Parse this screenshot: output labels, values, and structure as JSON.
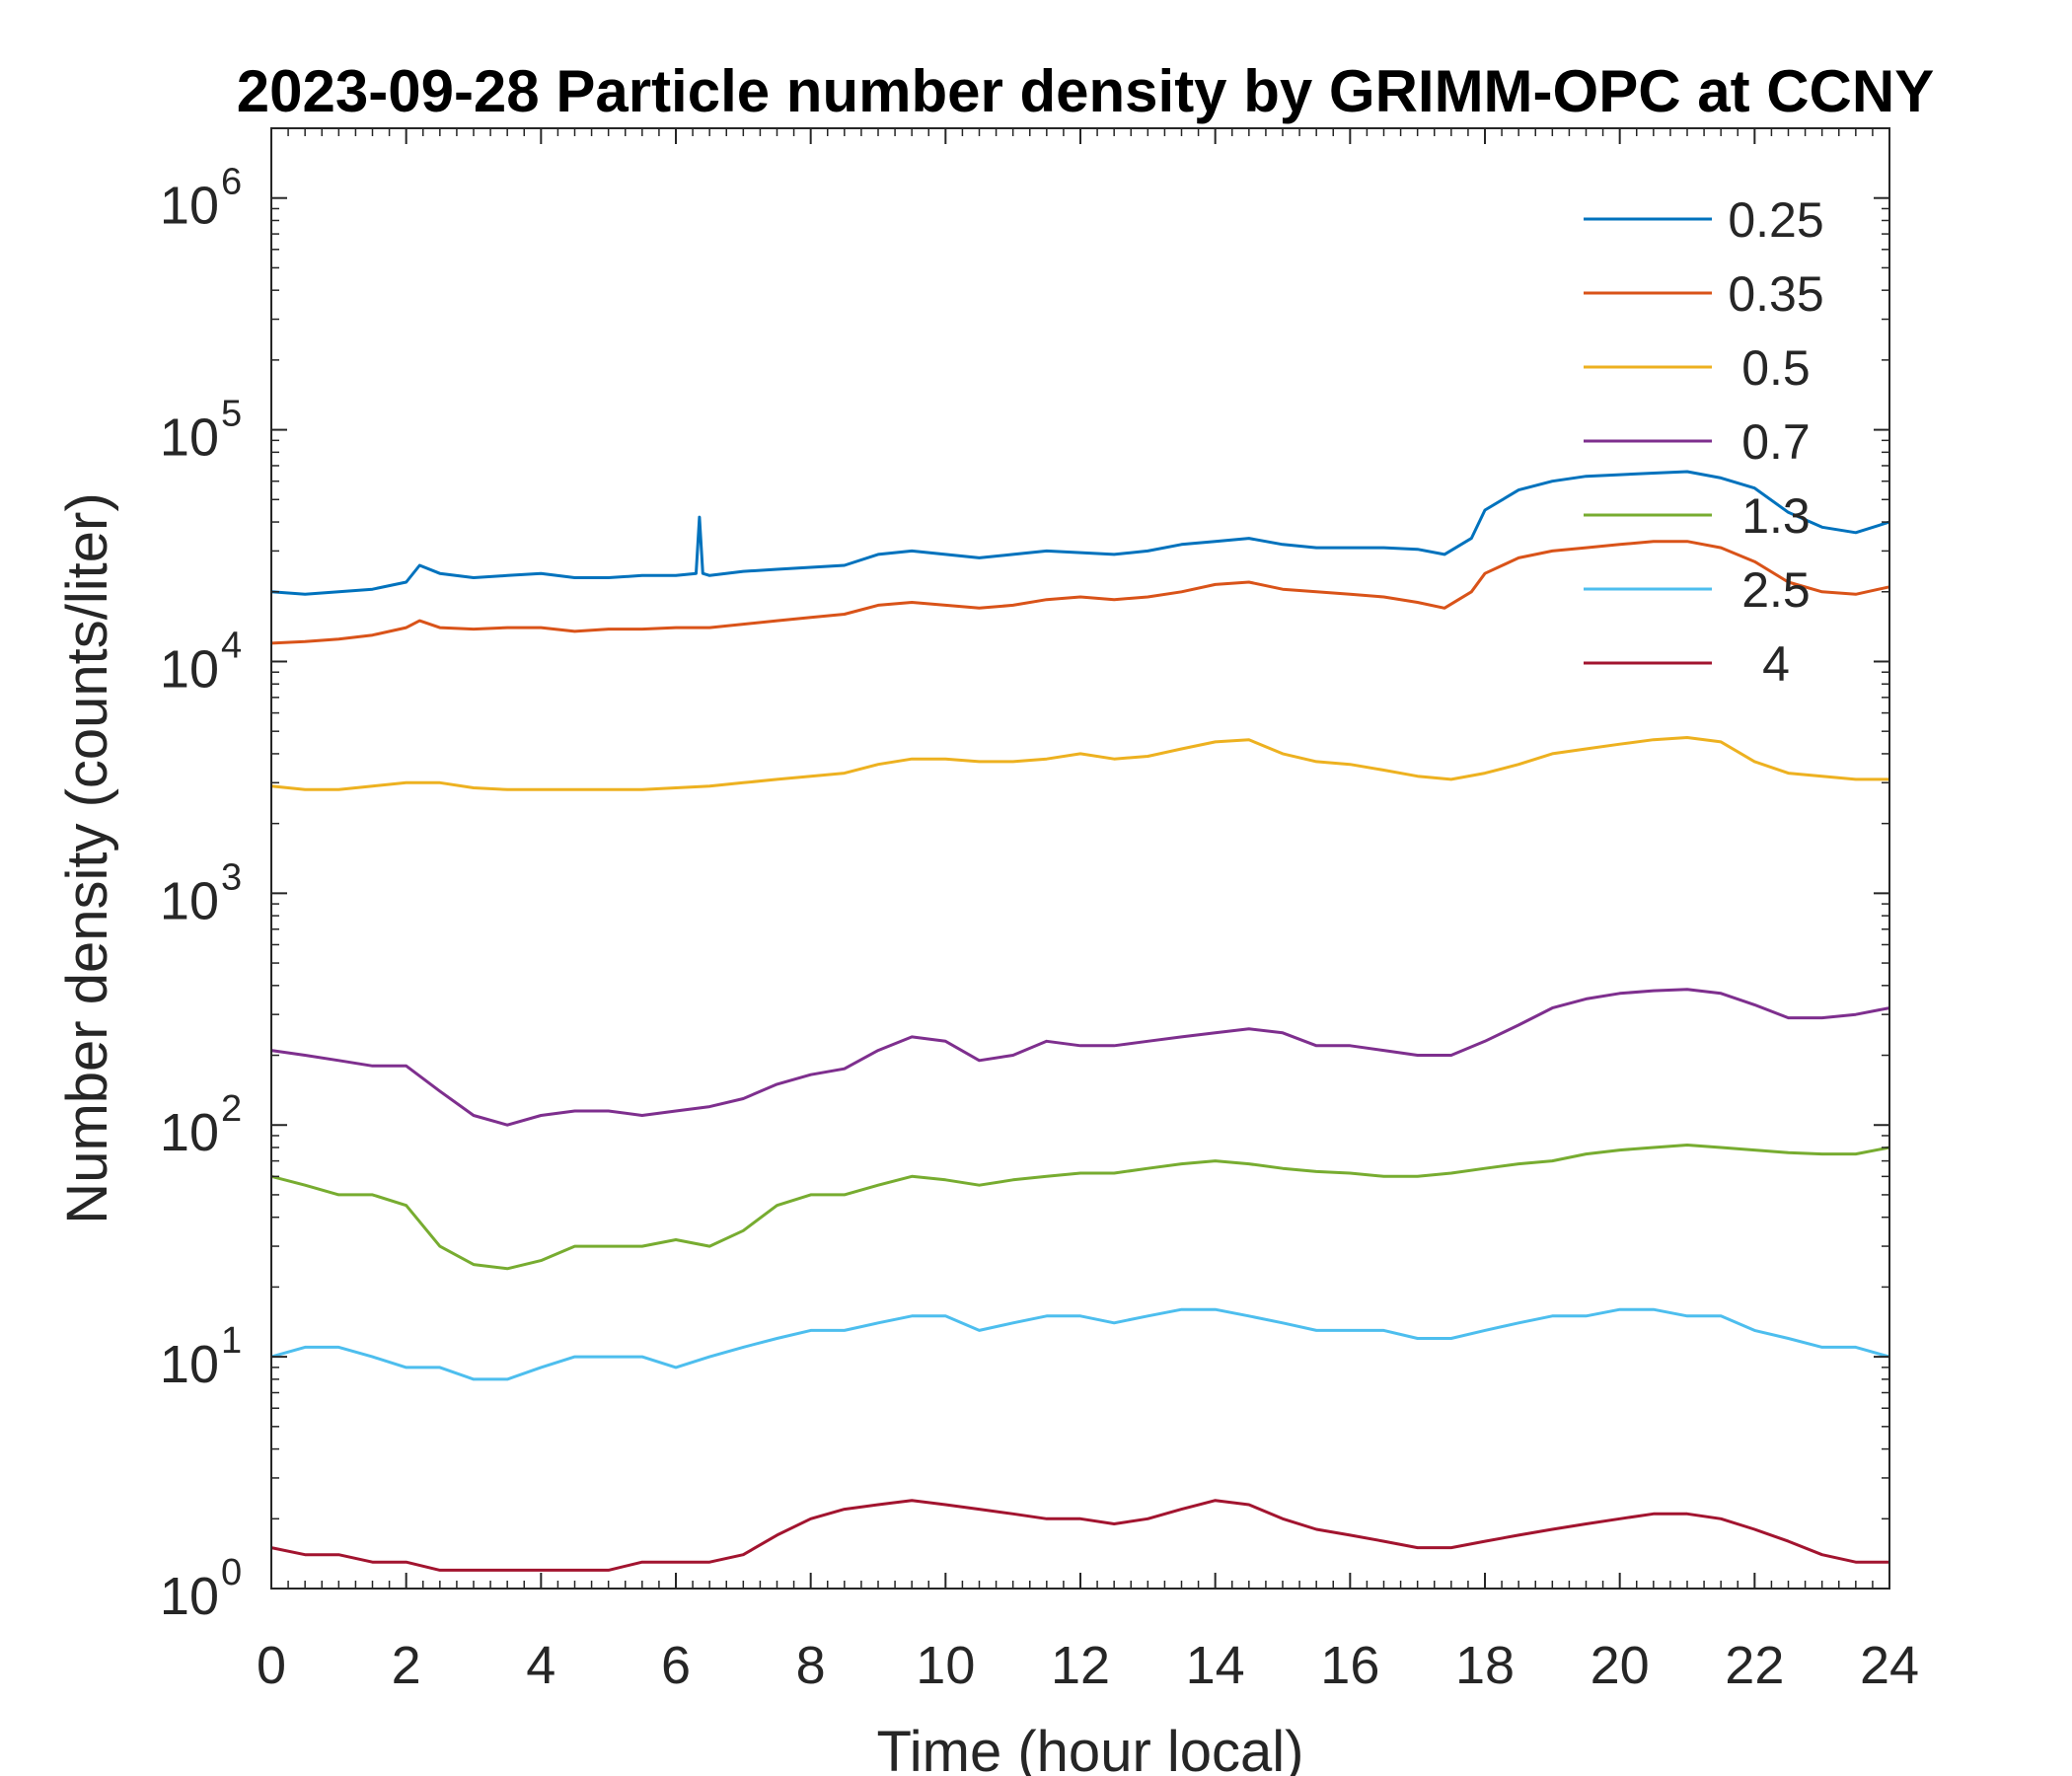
{
  "chart_data": {
    "type": "line",
    "title": "2023-09-28 Particle number density by GRIMM-OPC at CCNY",
    "xlabel": "Time (hour local)",
    "ylabel": "Number density (counts/liter)",
    "xlim": [
      0,
      24
    ],
    "ylim": [
      1,
      2000000
    ],
    "yscale": "log",
    "xticks": [
      0,
      2,
      4,
      6,
      8,
      10,
      12,
      14,
      16,
      18,
      20,
      22,
      24
    ],
    "xtick_labels": [
      "0",
      "2",
      "4",
      "6",
      "8",
      "10",
      "12",
      "14",
      "16",
      "18",
      "20",
      "22",
      "24"
    ],
    "ytick_exponents": [
      "0",
      "1",
      "2",
      "3",
      "4",
      "5",
      "6"
    ],
    "ytick_base": "10",
    "grid": false,
    "legend_position": "top-right",
    "series": [
      {
        "name": "0.25",
        "color": "#0072BD",
        "x": [
          0,
          0.5,
          1,
          1.5,
          2,
          2.2,
          2.5,
          3,
          3.5,
          4,
          4.5,
          5,
          5.5,
          6,
          6.3,
          6.35,
          6.4,
          6.5,
          7,
          7.5,
          8,
          8.5,
          9,
          9.5,
          10,
          10.5,
          11,
          11.5,
          12,
          12.5,
          13,
          13.5,
          14,
          14.5,
          15,
          15.5,
          16,
          16.5,
          17,
          17.4,
          17.8,
          18,
          18.5,
          19,
          19.5,
          20,
          20.5,
          21,
          21.5,
          22,
          22.5,
          23,
          23.5,
          24
        ],
        "y": [
          20000,
          19500,
          20000,
          20500,
          22000,
          26000,
          24000,
          23000,
          23500,
          24000,
          23000,
          23000,
          23500,
          23500,
          24000,
          42000,
          24000,
          23500,
          24500,
          25000,
          25500,
          26000,
          29000,
          30000,
          29000,
          28000,
          29000,
          30000,
          29500,
          29000,
          30000,
          32000,
          33000,
          34000,
          32000,
          31000,
          31000,
          31000,
          30500,
          29000,
          34000,
          45000,
          55000,
          60000,
          63000,
          64000,
          65000,
          66000,
          62000,
          56000,
          44000,
          38000,
          36000,
          40000
        ]
      },
      {
        "name": "0.35",
        "color": "#D95319",
        "x": [
          0,
          0.5,
          1,
          1.5,
          2,
          2.2,
          2.5,
          3,
          3.5,
          4,
          4.5,
          5,
          5.5,
          6,
          6.5,
          7,
          7.5,
          8,
          8.5,
          9,
          9.5,
          10,
          10.5,
          11,
          11.5,
          12,
          12.5,
          13,
          13.5,
          14,
          14.5,
          15,
          15.5,
          16,
          16.5,
          17,
          17.4,
          17.8,
          18,
          18.5,
          19,
          19.5,
          20,
          20.5,
          21,
          21.5,
          22,
          22.5,
          23,
          23.5,
          24
        ],
        "y": [
          12000,
          12200,
          12500,
          13000,
          14000,
          15000,
          14000,
          13800,
          14000,
          14000,
          13500,
          13800,
          13800,
          14000,
          14000,
          14500,
          15000,
          15500,
          16000,
          17500,
          18000,
          17500,
          17000,
          17500,
          18500,
          19000,
          18500,
          19000,
          20000,
          21500,
          22000,
          20500,
          20000,
          19500,
          19000,
          18000,
          17000,
          20000,
          24000,
          28000,
          30000,
          31000,
          32000,
          33000,
          33000,
          31000,
          27000,
          22000,
          20000,
          19500,
          21000
        ]
      },
      {
        "name": "0.5",
        "color": "#EDB120",
        "x": [
          0,
          0.5,
          1,
          1.5,
          2,
          2.5,
          3,
          3.5,
          4,
          4.5,
          5,
          5.5,
          6,
          6.5,
          7,
          7.5,
          8,
          8.5,
          9,
          9.5,
          10,
          10.5,
          11,
          11.5,
          12,
          12.5,
          13,
          13.5,
          14,
          14.5,
          15,
          15.5,
          16,
          16.5,
          17,
          17.5,
          18,
          18.5,
          19,
          19.5,
          20,
          20.5,
          21,
          21.5,
          22,
          22.5,
          23,
          23.5,
          24
        ],
        "y": [
          2900,
          2800,
          2800,
          2900,
          3000,
          3000,
          2850,
          2800,
          2800,
          2800,
          2800,
          2800,
          2850,
          2900,
          3000,
          3100,
          3200,
          3300,
          3600,
          3800,
          3800,
          3700,
          3700,
          3800,
          4000,
          3800,
          3900,
          4200,
          4500,
          4600,
          4000,
          3700,
          3600,
          3400,
          3200,
          3100,
          3300,
          3600,
          4000,
          4200,
          4400,
          4600,
          4700,
          4500,
          3700,
          3300,
          3200,
          3100,
          3100
        ]
      },
      {
        "name": "0.7",
        "color": "#7E2F8E",
        "x": [
          0,
          0.5,
          1,
          1.5,
          2,
          2.5,
          3,
          3.5,
          4,
          4.5,
          5,
          5.5,
          6,
          6.5,
          7,
          7.5,
          8,
          8.5,
          9,
          9.5,
          10,
          10.5,
          11,
          11.5,
          12,
          12.5,
          13,
          13.5,
          14,
          14.5,
          15,
          15.5,
          16,
          16.5,
          17,
          17.5,
          18,
          18.5,
          19,
          19.5,
          20,
          20.5,
          21,
          21.5,
          22,
          22.5,
          23,
          23.5,
          24
        ],
        "y": [
          210,
          200,
          190,
          180,
          180,
          140,
          110,
          100,
          110,
          115,
          115,
          110,
          115,
          120,
          130,
          150,
          165,
          175,
          210,
          240,
          230,
          190,
          200,
          230,
          220,
          220,
          230,
          240,
          250,
          260,
          250,
          220,
          220,
          210,
          200,
          200,
          230,
          270,
          320,
          350,
          370,
          380,
          385,
          370,
          330,
          290,
          290,
          300,
          320
        ]
      },
      {
        "name": "1.3",
        "color": "#77AC30",
        "x": [
          0,
          0.5,
          1,
          1.5,
          2,
          2.5,
          3,
          3.5,
          4,
          4.5,
          5,
          5.5,
          6,
          6.5,
          7,
          7.5,
          8,
          8.5,
          9,
          9.5,
          10,
          10.5,
          11,
          11.5,
          12,
          12.5,
          13,
          13.5,
          14,
          14.5,
          15,
          15.5,
          16,
          16.5,
          17,
          17.5,
          18,
          18.5,
          19,
          19.5,
          20,
          20.5,
          21,
          21.5,
          22,
          22.5,
          23,
          23.5,
          24
        ],
        "y": [
          60,
          55,
          50,
          50,
          45,
          30,
          25,
          24,
          26,
          30,
          30,
          30,
          32,
          30,
          35,
          45,
          50,
          50,
          55,
          60,
          58,
          55,
          58,
          60,
          62,
          62,
          65,
          68,
          70,
          68,
          65,
          63,
          62,
          60,
          60,
          62,
          65,
          68,
          70,
          75,
          78,
          80,
          82,
          80,
          78,
          76,
          75,
          75,
          80
        ]
      },
      {
        "name": "2.5",
        "color": "#4DBEEE",
        "x": [
          0,
          0.5,
          1,
          1.5,
          2,
          2.5,
          3,
          3.5,
          4,
          4.5,
          5,
          5.5,
          6,
          6.5,
          7,
          7.5,
          8,
          8.5,
          9,
          9.5,
          10,
          10.5,
          11,
          11.5,
          12,
          12.5,
          13,
          13.5,
          14,
          14.5,
          15,
          15.5,
          16,
          16.5,
          17,
          17.5,
          18,
          18.5,
          19,
          19.5,
          20,
          20.5,
          21,
          21.5,
          22,
          22.5,
          23,
          23.5,
          24
        ],
        "y": [
          10,
          11,
          11,
          10,
          9,
          9,
          8,
          8,
          9,
          10,
          10,
          10,
          9,
          10,
          11,
          12,
          13,
          13,
          14,
          15,
          15,
          13,
          14,
          15,
          15,
          14,
          15,
          16,
          16,
          15,
          14,
          13,
          13,
          13,
          12,
          12,
          13,
          14,
          15,
          15,
          16,
          16,
          15,
          15,
          13,
          12,
          11,
          11,
          10
        ]
      },
      {
        "name": "4",
        "color": "#A2142F",
        "x": [
          0,
          0.5,
          1,
          1.5,
          2,
          2.5,
          3,
          3.5,
          4,
          4.5,
          5,
          5.5,
          6,
          6.5,
          7,
          7.5,
          8,
          8.5,
          9,
          9.5,
          10,
          10.5,
          11,
          11.5,
          12,
          12.5,
          13,
          13.5,
          14,
          14.5,
          15,
          15.5,
          16,
          16.5,
          17,
          17.5,
          18,
          18.5,
          19,
          19.5,
          20,
          20.5,
          21,
          21.5,
          22,
          22.5,
          23,
          23.5,
          24
        ],
        "y": [
          1.5,
          1.4,
          1.4,
          1.3,
          1.3,
          1.2,
          1.2,
          1.2,
          1.2,
          1.2,
          1.2,
          1.3,
          1.3,
          1.3,
          1.4,
          1.7,
          2.0,
          2.2,
          2.3,
          2.4,
          2.3,
          2.2,
          2.1,
          2.0,
          2.0,
          1.9,
          2.0,
          2.2,
          2.4,
          2.3,
          2.0,
          1.8,
          1.7,
          1.6,
          1.5,
          1.5,
          1.6,
          1.7,
          1.8,
          1.9,
          2.0,
          2.1,
          2.1,
          2.0,
          1.8,
          1.6,
          1.4,
          1.3,
          1.3
        ]
      }
    ]
  }
}
